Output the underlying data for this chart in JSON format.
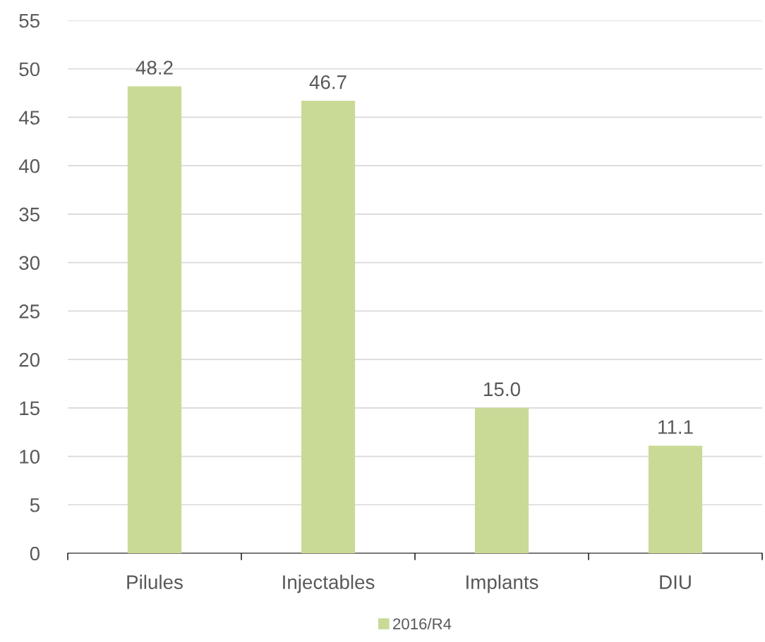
{
  "chart_data": {
    "type": "bar",
    "categories": [
      "Pilules",
      "Injectables",
      "Implants",
      "DIU"
    ],
    "series": [
      {
        "name": "2016/R4",
        "color": "#c9da96",
        "values": [
          48.2,
          46.7,
          15.0,
          11.1
        ],
        "value_labels": [
          "48.2",
          "46.7",
          "15.0",
          "11.1"
        ]
      }
    ],
    "ylim": [
      0,
      55
    ],
    "yticks": [
      0,
      5,
      10,
      15,
      20,
      25,
      30,
      35,
      40,
      45,
      50,
      55
    ],
    "grid": "y",
    "legend": "bottom"
  }
}
